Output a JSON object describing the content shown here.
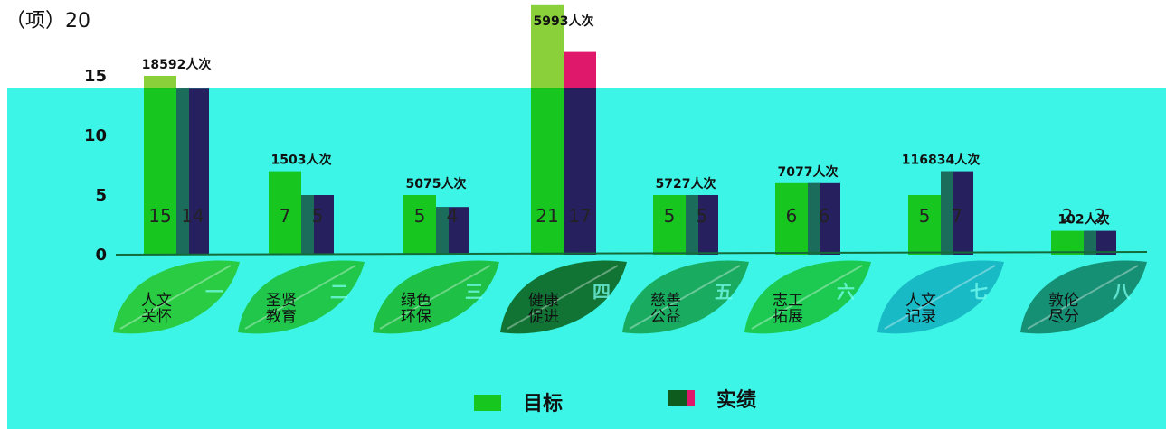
{
  "colors": {
    "target": "#17c61f",
    "actual": "#27205f",
    "actual_accent": "#1a7a5a",
    "background": "#3cf5e6",
    "baseline": "#136b3a",
    "overflow_target": "#8ad03a",
    "overflow_actual": "#e0186c"
  },
  "chart_data": {
    "type": "bar",
    "title": "",
    "unit_label": "（项）20",
    "xlabel": "",
    "ylabel": "",
    "ylim": [
      0,
      20
    ],
    "yticks": [
      "0",
      "5",
      "10",
      "15"
    ],
    "grid": false,
    "legend_position": "bottom",
    "categories": [
      {
        "name": "人文关怀",
        "line1": "人文",
        "line2": "关怀",
        "numeral": "一",
        "leaf": "#29c93b"
      },
      {
        "name": "圣贤教育",
        "line1": "圣贤",
        "line2": "教育",
        "numeral": "二",
        "leaf": "#1fc441"
      },
      {
        "name": "绿色环保",
        "line1": "绿色",
        "line2": "环保",
        "numeral": "三",
        "leaf": "#1cbd3c"
      },
      {
        "name": "健康促进",
        "line1": "健康",
        "line2": "促进",
        "numeral": "四",
        "leaf": "#0f6b2a"
      },
      {
        "name": "慈善公益",
        "line1": "慈善",
        "line2": "公益",
        "numeral": "五",
        "leaf": "#17a85a"
      },
      {
        "name": "志工拓展",
        "line1": "志工",
        "line2": "拓展",
        "numeral": "六",
        "leaf": "#1ac74a"
      },
      {
        "name": "人文记录",
        "line1": "人文",
        "line2": "记录",
        "numeral": "七",
        "leaf": "#16b6c4"
      },
      {
        "name": "敦伦尽分",
        "line1": "敦伦",
        "line2": "尽分",
        "numeral": "八",
        "leaf": "#148a6e"
      }
    ],
    "series": [
      {
        "name": "目标",
        "values": [
          15,
          7,
          5,
          21,
          5,
          6,
          5,
          2
        ]
      },
      {
        "name": "实绩",
        "values": [
          14,
          5,
          4,
          17,
          5,
          6,
          7,
          2
        ]
      }
    ],
    "value_labels": {
      "target": [
        "15",
        "7",
        "5",
        "21",
        "5",
        "6",
        "5",
        "2"
      ],
      "actual": [
        "14",
        "5",
        "4",
        "17",
        "5",
        "6",
        "7",
        "2"
      ]
    },
    "people_labels": [
      "18592人次",
      "1503人次",
      "5075人次",
      "5993人次",
      "5727人次",
      "7077人次",
      "116834人次",
      "102人次"
    ]
  },
  "legend": {
    "target_label": "目标",
    "actual_label": "实绩"
  }
}
